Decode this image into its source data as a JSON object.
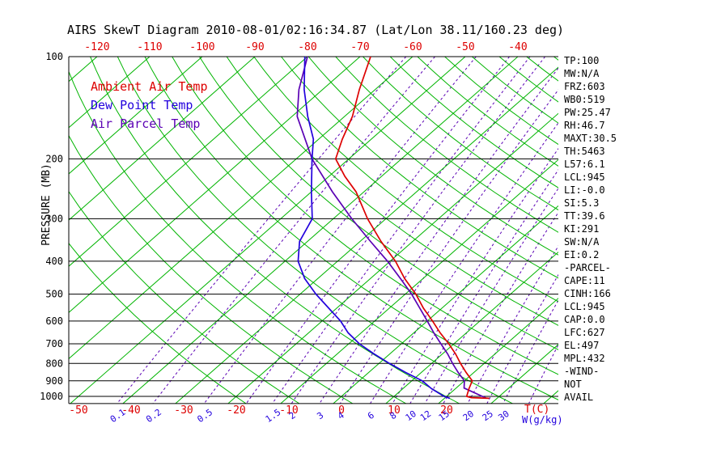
{
  "title": "AIRS SkewT Diagram 2010-08-01/02:16:34.87 (Lat/Lon 38.11/160.23 deg)",
  "side_panel": {
    "lines": [
      "TP:100",
      "MW:N/A",
      "FRZ:603",
      "WB0:519",
      "PW:25.47",
      "RH:46.7",
      "MAXT:30.5",
      "TH:5463",
      "L57:6.1",
      "LCL:945",
      "LI:-0.0",
      "SI:5.3",
      "TT:39.6",
      "KI:291",
      "SW:N/A",
      "EI:0.2",
      "-PARCEL-",
      "CAPE:11",
      "CINH:166",
      "LCL:945",
      "CAP:0.0",
      "LFC:627",
      "EL:497",
      "MPL:432",
      "-WIND-",
      "NOT",
      "AVAIL"
    ]
  },
  "chart_data": {
    "type": "line",
    "title": "AIRS SkewT Diagram 2010-08-01/02:16:34.87 (Lat/Lon 38.11/160.23 deg)",
    "x_axis": {
      "label": "T(C)",
      "top_ticks": [
        -120,
        -110,
        -100,
        -90,
        -80,
        -70,
        -60,
        -50,
        -40
      ],
      "bottom_ticks": [
        -50,
        -40,
        -30,
        -20,
        -10,
        0,
        10,
        20
      ]
    },
    "y_axis": {
      "label": "PRESSURE (MB)",
      "scale": "log",
      "ticks": [
        100,
        200,
        300,
        400,
        500,
        600,
        700,
        800,
        900,
        1000
      ],
      "range": [
        100,
        1050
      ]
    },
    "mixing_ratio": {
      "label": "W(g/kg)",
      "line_values": [
        0.1,
        0.2,
        0.5,
        1,
        1.5,
        2,
        3,
        4,
        6,
        8,
        10,
        12,
        15,
        20,
        25,
        30,
        40
      ],
      "label_values": [
        0.1,
        0.2,
        0.5,
        1.5,
        2,
        3,
        4,
        6,
        8,
        10,
        12,
        15,
        20,
        25,
        30
      ]
    },
    "isotherms": {
      "start": -130,
      "end": 40,
      "step": 10
    },
    "dry_adiabats": {
      "theta_k_start": 253,
      "theta_k_end": 463,
      "step": 10
    },
    "colors": {
      "grid_green": "#00b400",
      "temp_red": "#dd0000",
      "dew_blue": "#2200dd",
      "parcel_purple": "#5a00b4",
      "mixing_line": "#5a00b4",
      "axis_black": "#000000"
    },
    "legend_position": "top-left-inside",
    "series": [
      {
        "name": "Ambient Air Temp",
        "color": "#dd0000",
        "points_p_t": [
          [
            1013,
            28.5
          ],
          [
            1009,
            25
          ],
          [
            1000,
            23.8
          ],
          [
            950,
            22.6
          ],
          [
            900,
            21.5
          ],
          [
            850,
            18.5
          ],
          [
            800,
            15.5
          ],
          [
            750,
            12.5
          ],
          [
            700,
            9.0
          ],
          [
            650,
            5.0
          ],
          [
            600,
            1.0
          ],
          [
            550,
            -3.5
          ],
          [
            500,
            -8.0
          ],
          [
            450,
            -13.5
          ],
          [
            400,
            -19.0
          ],
          [
            350,
            -26.0
          ],
          [
            300,
            -33.5
          ],
          [
            250,
            -41.5
          ],
          [
            225,
            -47.0
          ],
          [
            200,
            -52.5
          ],
          [
            175,
            -55.5
          ],
          [
            150,
            -58.5
          ],
          [
            125,
            -63.0
          ],
          [
            100,
            -68.0
          ]
        ]
      },
      {
        "name": "Dew Point Temp",
        "color": "#2200dd",
        "points_p_t": [
          [
            1013,
            21.0
          ],
          [
            1000,
            19.5
          ],
          [
            950,
            15.5
          ],
          [
            900,
            12.0
          ],
          [
            850,
            7.0
          ],
          [
            800,
            2.0
          ],
          [
            750,
            -3.0
          ],
          [
            700,
            -8.0
          ],
          [
            650,
            -12.5
          ],
          [
            600,
            -16.5
          ],
          [
            550,
            -21.5
          ],
          [
            500,
            -27.0
          ],
          [
            450,
            -32.5
          ],
          [
            400,
            -37.5
          ],
          [
            350,
            -41.5
          ],
          [
            300,
            -44.0
          ],
          [
            250,
            -50.0
          ],
          [
            200,
            -57.0
          ],
          [
            175,
            -61.0
          ],
          [
            150,
            -67.0
          ],
          [
            125,
            -73.5
          ],
          [
            100,
            -80.5
          ]
        ]
      },
      {
        "name": "Air Parcel Temp",
        "color": "#5a00b4",
        "points_p_t": [
          [
            1013,
            28.0
          ],
          [
            945,
            21.5
          ],
          [
            900,
            20.0
          ],
          [
            850,
            17.0
          ],
          [
            800,
            14.0
          ],
          [
            750,
            11.0
          ],
          [
            700,
            7.5
          ],
          [
            650,
            3.8
          ],
          [
            600,
            0.0
          ],
          [
            550,
            -4.2
          ],
          [
            500,
            -8.8
          ],
          [
            450,
            -14.3
          ],
          [
            400,
            -20.5
          ],
          [
            350,
            -28.0
          ],
          [
            300,
            -36.5
          ],
          [
            250,
            -46.0
          ],
          [
            200,
            -57.0
          ],
          [
            150,
            -69.0
          ],
          [
            125,
            -74.5
          ],
          [
            100,
            -80.0
          ]
        ]
      }
    ]
  }
}
